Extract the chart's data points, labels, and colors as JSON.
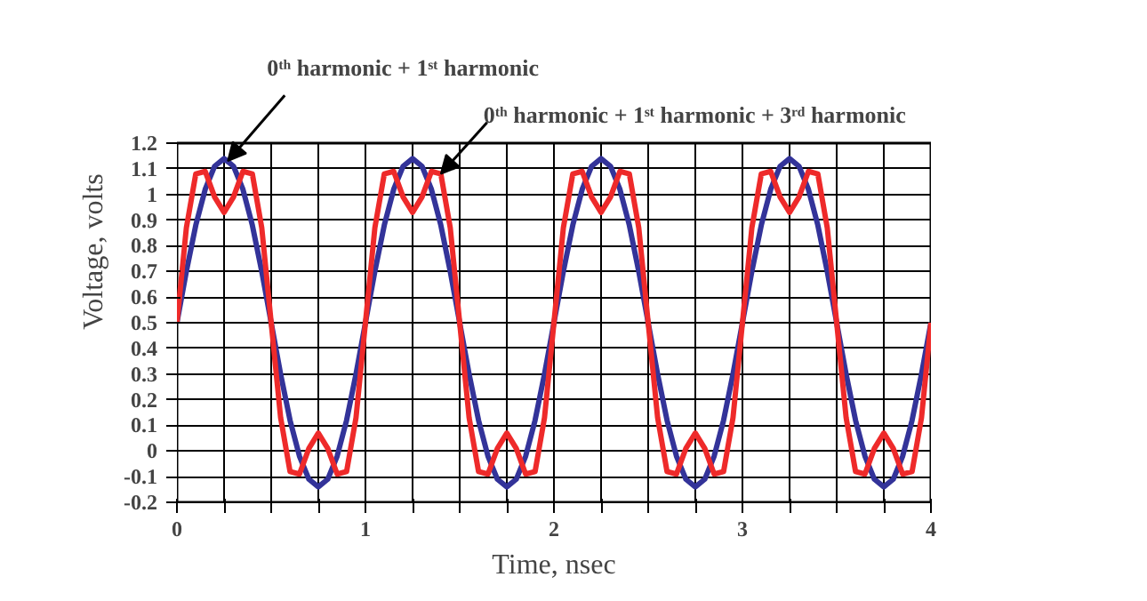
{
  "chart_data": {
    "type": "line",
    "xlabel": "Time, nsec",
    "ylabel": "Voltage, volts",
    "x": [
      0,
      0.05,
      0.1,
      0.15,
      0.2,
      0.25,
      0.3,
      0.35,
      0.4,
      0.45,
      0.5,
      0.55,
      0.6,
      0.65,
      0.7,
      0.75,
      0.8,
      0.85,
      0.9,
      0.95,
      1,
      1.05,
      1.1,
      1.15,
      1.2,
      1.25,
      1.3,
      1.35,
      1.4,
      1.45,
      1.5,
      1.55,
      1.6,
      1.65,
      1.7,
      1.75,
      1.8,
      1.85,
      1.9,
      1.95,
      2,
      2.05,
      2.1,
      2.15,
      2.2,
      2.25,
      2.3,
      2.35,
      2.4,
      2.45,
      2.5,
      2.55,
      2.6,
      2.65,
      2.7,
      2.75,
      2.8,
      2.85,
      2.9,
      2.95,
      3,
      3.05,
      3.1,
      3.15,
      3.2,
      3.25,
      3.3,
      3.35,
      3.4,
      3.45,
      3.5,
      3.55,
      3.6,
      3.65,
      3.7,
      3.75,
      3.8,
      3.85,
      3.9,
      3.95,
      4
    ],
    "series": [
      {
        "color": "#333399",
        "values": [
          0.5,
          0.7,
          0.88,
          1.02,
          1.11,
          1.14,
          1.11,
          1.02,
          0.88,
          0.7,
          0.5,
          0.3,
          0.12,
          -0.02,
          -0.11,
          -0.14,
          -0.11,
          -0.02,
          0.12,
          0.3,
          0.5,
          0.7,
          0.88,
          1.02,
          1.11,
          1.14,
          1.11,
          1.02,
          0.88,
          0.7,
          0.5,
          0.3,
          0.12,
          -0.02,
          -0.11,
          -0.14,
          -0.11,
          -0.02,
          0.12,
          0.3,
          0.5,
          0.7,
          0.88,
          1.02,
          1.11,
          1.14,
          1.11,
          1.02,
          0.88,
          0.7,
          0.5,
          0.3,
          0.12,
          -0.02,
          -0.11,
          -0.14,
          -0.11,
          -0.02,
          0.12,
          0.3,
          0.5,
          0.7,
          0.88,
          1.02,
          1.11,
          1.14,
          1.11,
          1.02,
          0.88,
          0.7,
          0.5,
          0.3,
          0.12,
          -0.02,
          -0.11,
          -0.14,
          -0.11,
          -0.02,
          0.12,
          0.3,
          0.5
        ]
      },
      {
        "color": "#ee2a2a",
        "values": [
          0.5,
          0.87,
          1.08,
          1.09,
          0.99,
          0.93,
          0.99,
          1.09,
          1.08,
          0.87,
          0.5,
          0.13,
          -0.08,
          -0.09,
          0.01,
          0.07,
          0.01,
          -0.09,
          -0.08,
          0.13,
          0.5,
          0.87,
          1.08,
          1.09,
          0.99,
          0.93,
          0.99,
          1.09,
          1.08,
          0.87,
          0.5,
          0.13,
          -0.08,
          -0.09,
          0.01,
          0.07,
          0.01,
          -0.09,
          -0.08,
          0.13,
          0.5,
          0.87,
          1.08,
          1.09,
          0.99,
          0.93,
          0.99,
          1.09,
          1.08,
          0.87,
          0.5,
          0.13,
          -0.08,
          -0.09,
          0.01,
          0.07,
          0.01,
          -0.09,
          -0.08,
          0.13,
          0.5,
          0.87,
          1.08,
          1.09,
          0.99,
          0.93,
          0.99,
          1.09,
          1.08,
          0.87,
          0.5,
          0.13,
          -0.08,
          -0.09,
          0.01,
          0.07,
          0.01,
          -0.09,
          -0.08,
          0.13,
          0.5
        ]
      }
    ],
    "xlim": [
      0,
      4
    ],
    "xticks": [
      0,
      {
        "value": 0.25,
        "label": null
      },
      {
        "value": 0.5,
        "label": null
      },
      {
        "value": 0.75,
        "label": null
      },
      1,
      {
        "value": 1.25,
        "label": null
      },
      {
        "value": 1.5,
        "label": null
      },
      {
        "value": 1.75,
        "label": null
      },
      2,
      {
        "value": 2.25,
        "label": null
      },
      {
        "value": 2.5,
        "label": null
      },
      {
        "value": 2.75,
        "label": null
      },
      3,
      {
        "value": 3.25,
        "label": null
      },
      {
        "value": 3.5,
        "label": null
      },
      {
        "value": 3.75,
        "label": null
      },
      4
    ],
    "ylim": [
      -0.2,
      1.2
    ],
    "yticks": [
      -0.2,
      -0.1,
      0,
      0.1,
      0.2,
      0.3,
      0.4,
      0.5,
      0.6,
      0.7,
      0.8,
      0.9,
      1,
      1.1,
      1.2
    ],
    "grid": true,
    "annotations": [
      {
        "text": "0ᵗʰ harmonic + 1ˢᵗ harmonic",
        "x": 0.27,
        "y": 1.13
      },
      {
        "text": "0ᵗʰ harmonic + 1ˢᵗ harmonic + 3ʳᵈ harmonic",
        "x": 1.4,
        "y": 1.08
      }
    ]
  }
}
